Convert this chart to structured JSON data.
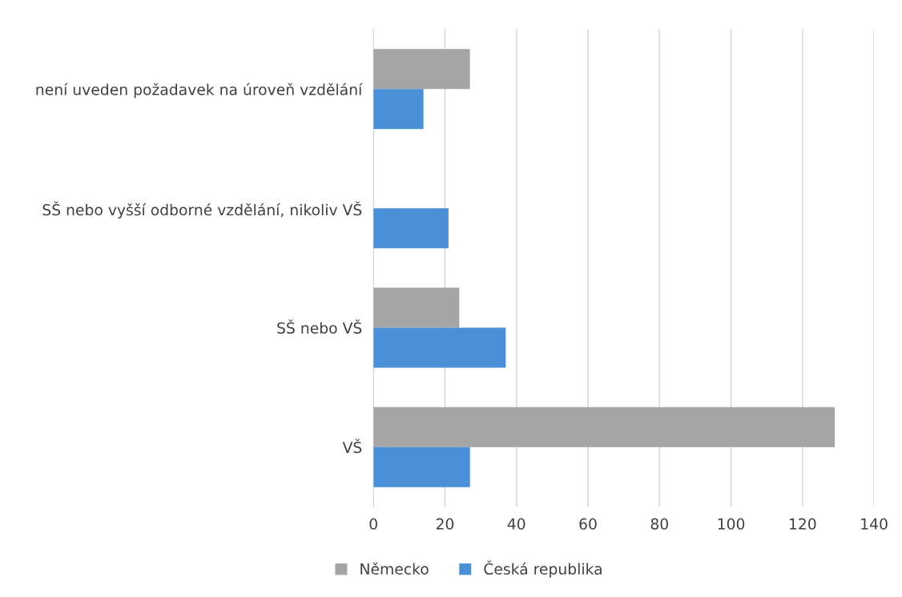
{
  "chart_data": {
    "type": "bar",
    "orientation": "horizontal",
    "categories": [
      "není uveden požadavek na úroveň vzdělání",
      "SŠ nebo vyšší odborné vzdělání, nikoliv VŠ",
      "SŠ nebo VŠ",
      "VŠ"
    ],
    "series": [
      {
        "name": "Německo",
        "color": "#a5a5a5",
        "values": [
          27,
          0,
          24,
          129
        ]
      },
      {
        "name": "Česká republika",
        "color": "#4a90d9",
        "values": [
          14,
          21,
          37,
          27
        ]
      }
    ],
    "xlim": [
      0,
      140
    ],
    "xticks": [
      0,
      20,
      40,
      60,
      80,
      100,
      120,
      140
    ],
    "grid": "x",
    "legend": "bottom"
  }
}
